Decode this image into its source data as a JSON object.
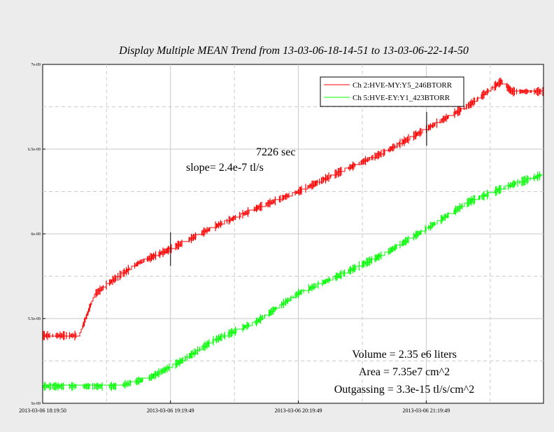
{
  "chart_data": {
    "type": "line",
    "title": "Display Multiple MEAN Trend from 13-03-06-18-14-51 to 13-03-06-22-14-50",
    "xlabel": "",
    "ylabel": "",
    "xlim": [
      "2013-03-06 18:19:50",
      "2013-03-06 22:14:50"
    ],
    "ylim": [
      5e-09,
      7e-09
    ],
    "y_ticks": [
      5e-09,
      5.5e-09,
      6e-09,
      6.5e-09,
      7e-09
    ],
    "y_tick_labels": [
      "5e-09",
      "5.5e-09",
      "6e-09",
      "6.5e-09",
      "7e-09"
    ],
    "x_ticks": [
      "2013-03-06 18:19:50",
      "2013-03-06 19:19:49",
      "2013-03-06 20:19:49",
      "2013-03-06 21:19:49"
    ],
    "grid": true,
    "legend_position": "top-right",
    "series": [
      {
        "name": "Ch 2:HVE-MY:Y5_246BTORR",
        "color": "#ff0000",
        "points": [
          [
            "2013-03-06 18:19:50",
            5.4e-09
          ],
          [
            "2013-03-06 18:37:00",
            5.4e-09
          ],
          [
            "2013-03-06 18:40:00",
            5.5e-09
          ],
          [
            "2013-03-06 18:44:00",
            5.64e-09
          ],
          [
            "2013-03-06 18:52:00",
            5.72e-09
          ],
          [
            "2013-03-06 19:05:00",
            5.83e-09
          ],
          [
            "2013-03-06 19:19:49",
            5.91e-09
          ],
          [
            "2013-03-06 19:40:00",
            6.04e-09
          ],
          [
            "2013-03-06 20:00:00",
            6.15e-09
          ],
          [
            "2013-03-06 20:20:00",
            6.25e-09
          ],
          [
            "2013-03-06 20:40:00",
            6.37e-09
          ],
          [
            "2013-03-06 21:00:00",
            6.48e-09
          ],
          [
            "2013-03-06 21:20:00",
            6.62e-09
          ],
          [
            "2013-03-06 21:40:00",
            6.76e-09
          ],
          [
            "2013-03-06 21:55:00",
            6.9e-09
          ],
          [
            "2013-03-06 22:00:00",
            6.84e-09
          ],
          [
            "2013-03-06 22:14:50",
            6.84e-09
          ]
        ]
      },
      {
        "name": "Ch 5:HVE-EY:Y1_423BTORR",
        "color": "#00ff00",
        "points": [
          [
            "2013-03-06 18:19:50",
            5.1e-09
          ],
          [
            "2013-03-06 18:55:00",
            5.1e-09
          ],
          [
            "2013-03-06 19:10:00",
            5.15e-09
          ],
          [
            "2013-03-06 19:25:00",
            5.25e-09
          ],
          [
            "2013-03-06 19:40:00",
            5.37e-09
          ],
          [
            "2013-03-06 20:00:00",
            5.48e-09
          ],
          [
            "2013-03-06 20:20:00",
            5.65e-09
          ],
          [
            "2013-03-06 20:40:00",
            5.76e-09
          ],
          [
            "2013-03-06 21:00:00",
            5.88e-09
          ],
          [
            "2013-03-06 21:20:00",
            6.03e-09
          ],
          [
            "2013-03-06 21:40:00",
            6.19e-09
          ],
          [
            "2013-03-06 22:00:00",
            6.29e-09
          ],
          [
            "2013-03-06 22:14:50",
            6.35e-09
          ]
        ]
      }
    ],
    "markers": [
      {
        "x": "2013-03-06 19:19:49",
        "y": 5.91e-09
      },
      {
        "x": "2013-03-06 21:20:00",
        "y": 6.62e-09
      }
    ],
    "annotations": {
      "interval": "7226 sec",
      "slope": "slope= 2.4e-7 tl/s",
      "volume": "Volume = 2.35 e6 liters",
      "area": "Area = 7.35e7 cm^2",
      "outgassing": "Outgassing = 3.3e-15 tl/s/cm^2"
    }
  }
}
